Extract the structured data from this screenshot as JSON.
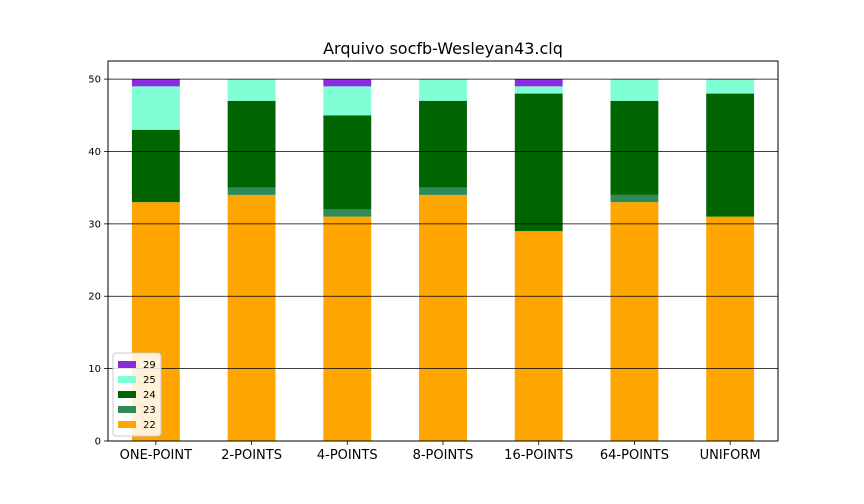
{
  "chart_data": {
    "type": "bar",
    "stacked": true,
    "title": "Arquivo socfb-Wesleyan43.clq",
    "xlabel": "",
    "ylabel": "",
    "categories": [
      "ONE-POINT",
      "2-POINTS",
      "4-POINTS",
      "8-POINTS",
      "16-POINTS",
      "64-POINTS",
      "UNIFORM"
    ],
    "ylim": [
      0,
      52.5
    ],
    "yticks": [
      0,
      10,
      20,
      30,
      40,
      50
    ],
    "grid": "horizontal",
    "legend_position": "bottom-left",
    "series": [
      {
        "name": "22",
        "color": "#ffa500",
        "values": [
          33,
          34,
          31,
          34,
          29,
          33,
          31
        ]
      },
      {
        "name": "23",
        "color": "#2e8b57",
        "values": [
          0,
          1,
          1,
          1,
          0,
          1,
          0
        ]
      },
      {
        "name": "24",
        "color": "#006400",
        "values": [
          10,
          12,
          13,
          12,
          19,
          13,
          17
        ]
      },
      {
        "name": "25",
        "color": "#7fffd4",
        "values": [
          6,
          3,
          4,
          3,
          1,
          3,
          2
        ]
      },
      {
        "name": "29",
        "color": "#8a2be2",
        "values": [
          1,
          0,
          1,
          0,
          1,
          0,
          0
        ]
      }
    ]
  }
}
